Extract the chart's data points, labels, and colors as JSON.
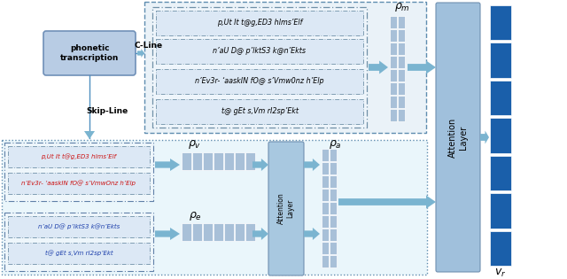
{
  "top_box_lines": [
    "p,Ut It t@g,ED3 hlms’Elf",
    "n’aU D@ p’lktS3 k@n’Ekts",
    "n’Ev3r- ‘aaskIN fO@ s’Vmw0nz h’Elp",
    "t@ gEt s,Vm rI2sp’Ekt"
  ],
  "bottom_v_lines": [
    "p,Ut It t@g,ED3 hlms’Elf",
    "n’Ev3r- ‘aaskIN fO@ s’VmwOnz h’Elp"
  ],
  "bottom_e_lines": [
    "n’aU D@ p’lktS3 k@n’Ekts",
    "t@ gEt s,Vm rI2sp’Ekt"
  ],
  "arrow_color": "#7ab4d0",
  "top_bg": "#eaf2f8",
  "bot_bg": "#eaf6fb",
  "line_bg": "#dce8f5",
  "line_border": "#7090a8",
  "phonetic_face": "#b0c4dc",
  "phonetic_edge": "#8098b8",
  "matrix_light": "#a8c0d8",
  "attn_color": "#a0c0dc",
  "vr_color": "#1a5faa",
  "inner_box_bg": "#eef5fb"
}
